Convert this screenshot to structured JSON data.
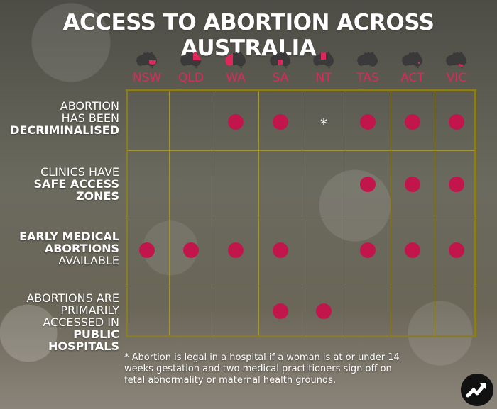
{
  "title": "ACCESS TO ABORTION ACROSS AUSTRALIA",
  "colors": {
    "accent_text": "#e0275b",
    "dot": "#c1154b",
    "grid_border": "#8b7c1d",
    "map_grey": "#3a3a3a"
  },
  "states": [
    {
      "label": "NSW",
      "map_icon": "australia-map-nsw-highlighted-icon"
    },
    {
      "label": "QLD",
      "map_icon": "australia-map-qld-highlighted-icon"
    },
    {
      "label": "WA",
      "map_icon": "australia-map-wa-highlighted-icon"
    },
    {
      "label": "SA",
      "map_icon": "australia-map-sa-highlighted-icon"
    },
    {
      "label": "NT",
      "map_icon": "australia-map-nt-highlighted-icon"
    },
    {
      "label": "TAS",
      "map_icon": "australia-map-tas-highlighted-icon"
    },
    {
      "label": "ACT",
      "map_icon": "australia-map-act-highlighted-icon"
    },
    {
      "label": "VIC",
      "map_icon": "australia-map-vic-highlighted-icon"
    }
  ],
  "rows": [
    {
      "lines": [
        "ABORTION",
        "HAS BEEN"
      ],
      "bold_lines": [
        "DECRIMINALISED"
      ],
      "cells": [
        "",
        "",
        "dot",
        "dot",
        "star",
        "dot",
        "dot",
        "dot"
      ]
    },
    {
      "lines": [
        "CLINICS HAVE"
      ],
      "bold_lines": [
        "SAFE ACCESS",
        "ZONES"
      ],
      "cells": [
        "",
        "",
        "",
        "",
        "",
        "dot",
        "dot",
        "dot"
      ]
    },
    {
      "bold_lines": [
        "EARLY MEDICAL",
        "ABORTIONS"
      ],
      "lines": [
        "AVAILABLE"
      ],
      "cells": [
        "dot",
        "dot",
        "dot",
        "dot",
        "",
        "dot",
        "dot",
        "dot"
      ]
    },
    {
      "lines": [
        "ABORTIONS ARE",
        "PRIMARILY",
        "ACCESSED IN"
      ],
      "bold_lines": [
        "PUBLIC HOSPITALS"
      ],
      "cells": [
        "",
        "",
        "",
        "dot",
        "dot",
        "",
        "",
        ""
      ]
    }
  ],
  "star_symbol": "*",
  "footnote": "* Abortion is legal in a hospital if a woman is at or under 14 weeks gestation and two medical practitioners sign off on fetal abnormality or maternal health grounds.",
  "logo_icon": "trending-arrow-icon"
}
